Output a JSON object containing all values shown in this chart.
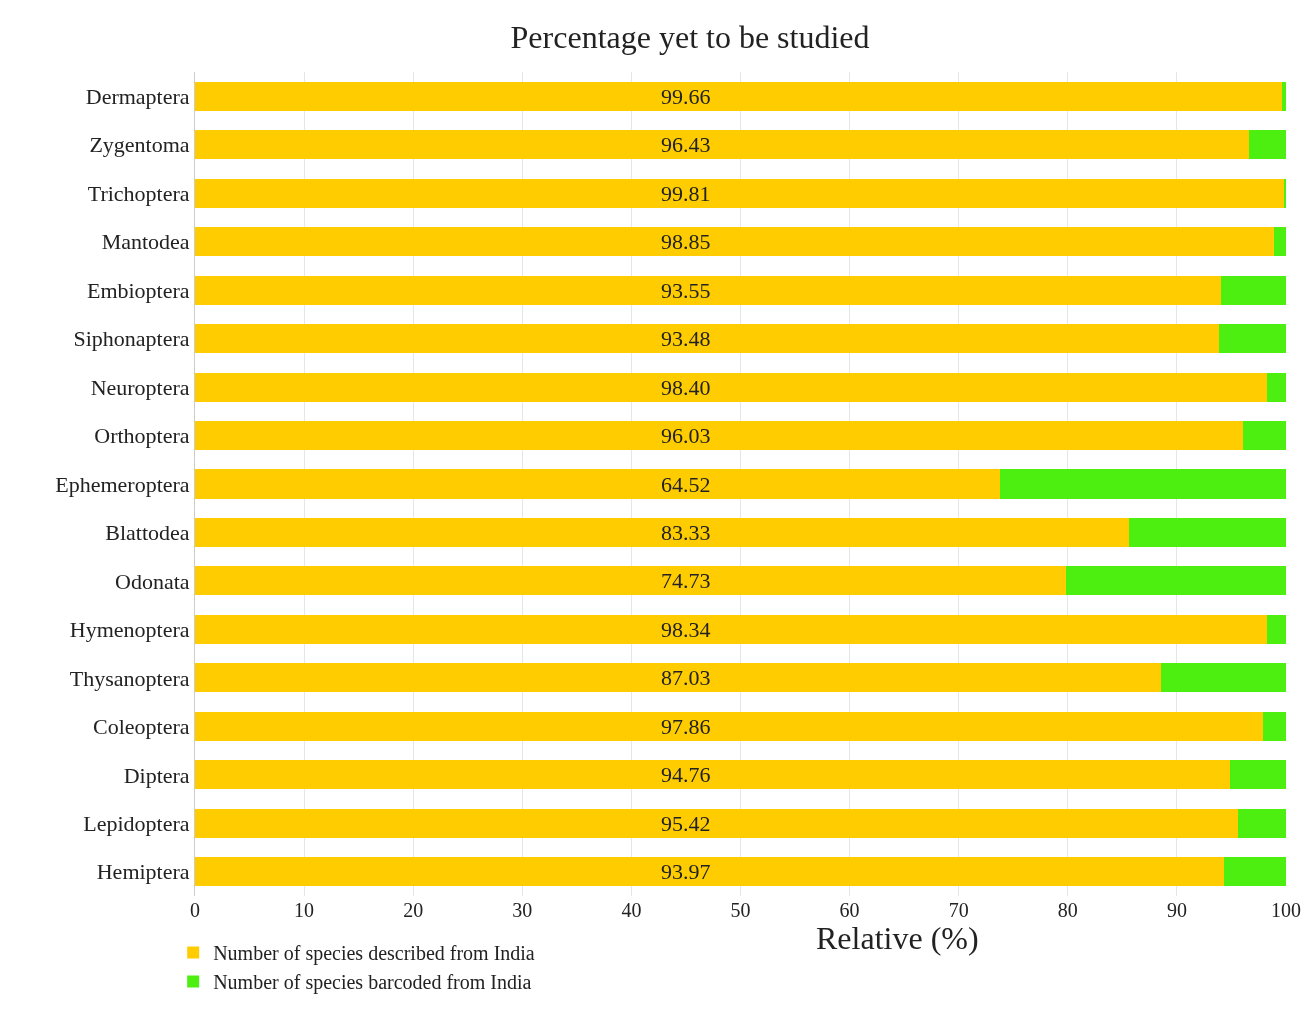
{
  "chart_data": {
    "type": "bar",
    "orientation": "horizontal",
    "stacked": true,
    "title": "Percentage yet to be studied",
    "xlabel": "Relative (%)",
    "categories": [
      "Dermaptera",
      "Zygentoma",
      "Trichoptera",
      "Mantodea",
      "Embioptera",
      "Siphonaptera",
      "Neuroptera",
      "Orthoptera",
      "Ephemeroptera",
      "Blattodea",
      "Odonata",
      "Hymenoptera",
      "Thysanoptera",
      "Coleoptera",
      "Diptera",
      "Lepidoptera",
      "Hemiptera"
    ],
    "series": [
      {
        "name": "Number of species described from India",
        "color": "#ffcc00",
        "values": [
          99.6,
          96.6,
          99.8,
          98.9,
          94.0,
          93.9,
          98.3,
          96.1,
          73.8,
          85.6,
          79.8,
          98.3,
          88.5,
          97.9,
          94.9,
          95.6,
          94.3
        ]
      },
      {
        "name": "Number of species barcoded from India",
        "color": "#4cef0f",
        "values": [
          0.4,
          3.4,
          0.2,
          1.1,
          6.0,
          6.1,
          1.7,
          3.9,
          26.2,
          14.4,
          20.2,
          1.7,
          11.5,
          2.1,
          5.1,
          4.4,
          5.7
        ]
      }
    ],
    "annotations": [
      "99.66",
      "96.43",
      "99.81",
      "98.85",
      "93.55",
      "93.48",
      "98.40",
      "96.03",
      "64.52",
      "83.33",
      "74.73",
      "98.34",
      "87.03",
      "97.86",
      "94.76",
      "95.42",
      "93.97"
    ],
    "xlim": [
      0,
      100
    ],
    "xticks": [
      0,
      10,
      20,
      30,
      40,
      50,
      60,
      70,
      80,
      90,
      100
    ],
    "grid": "x",
    "legend": "bottom left"
  }
}
